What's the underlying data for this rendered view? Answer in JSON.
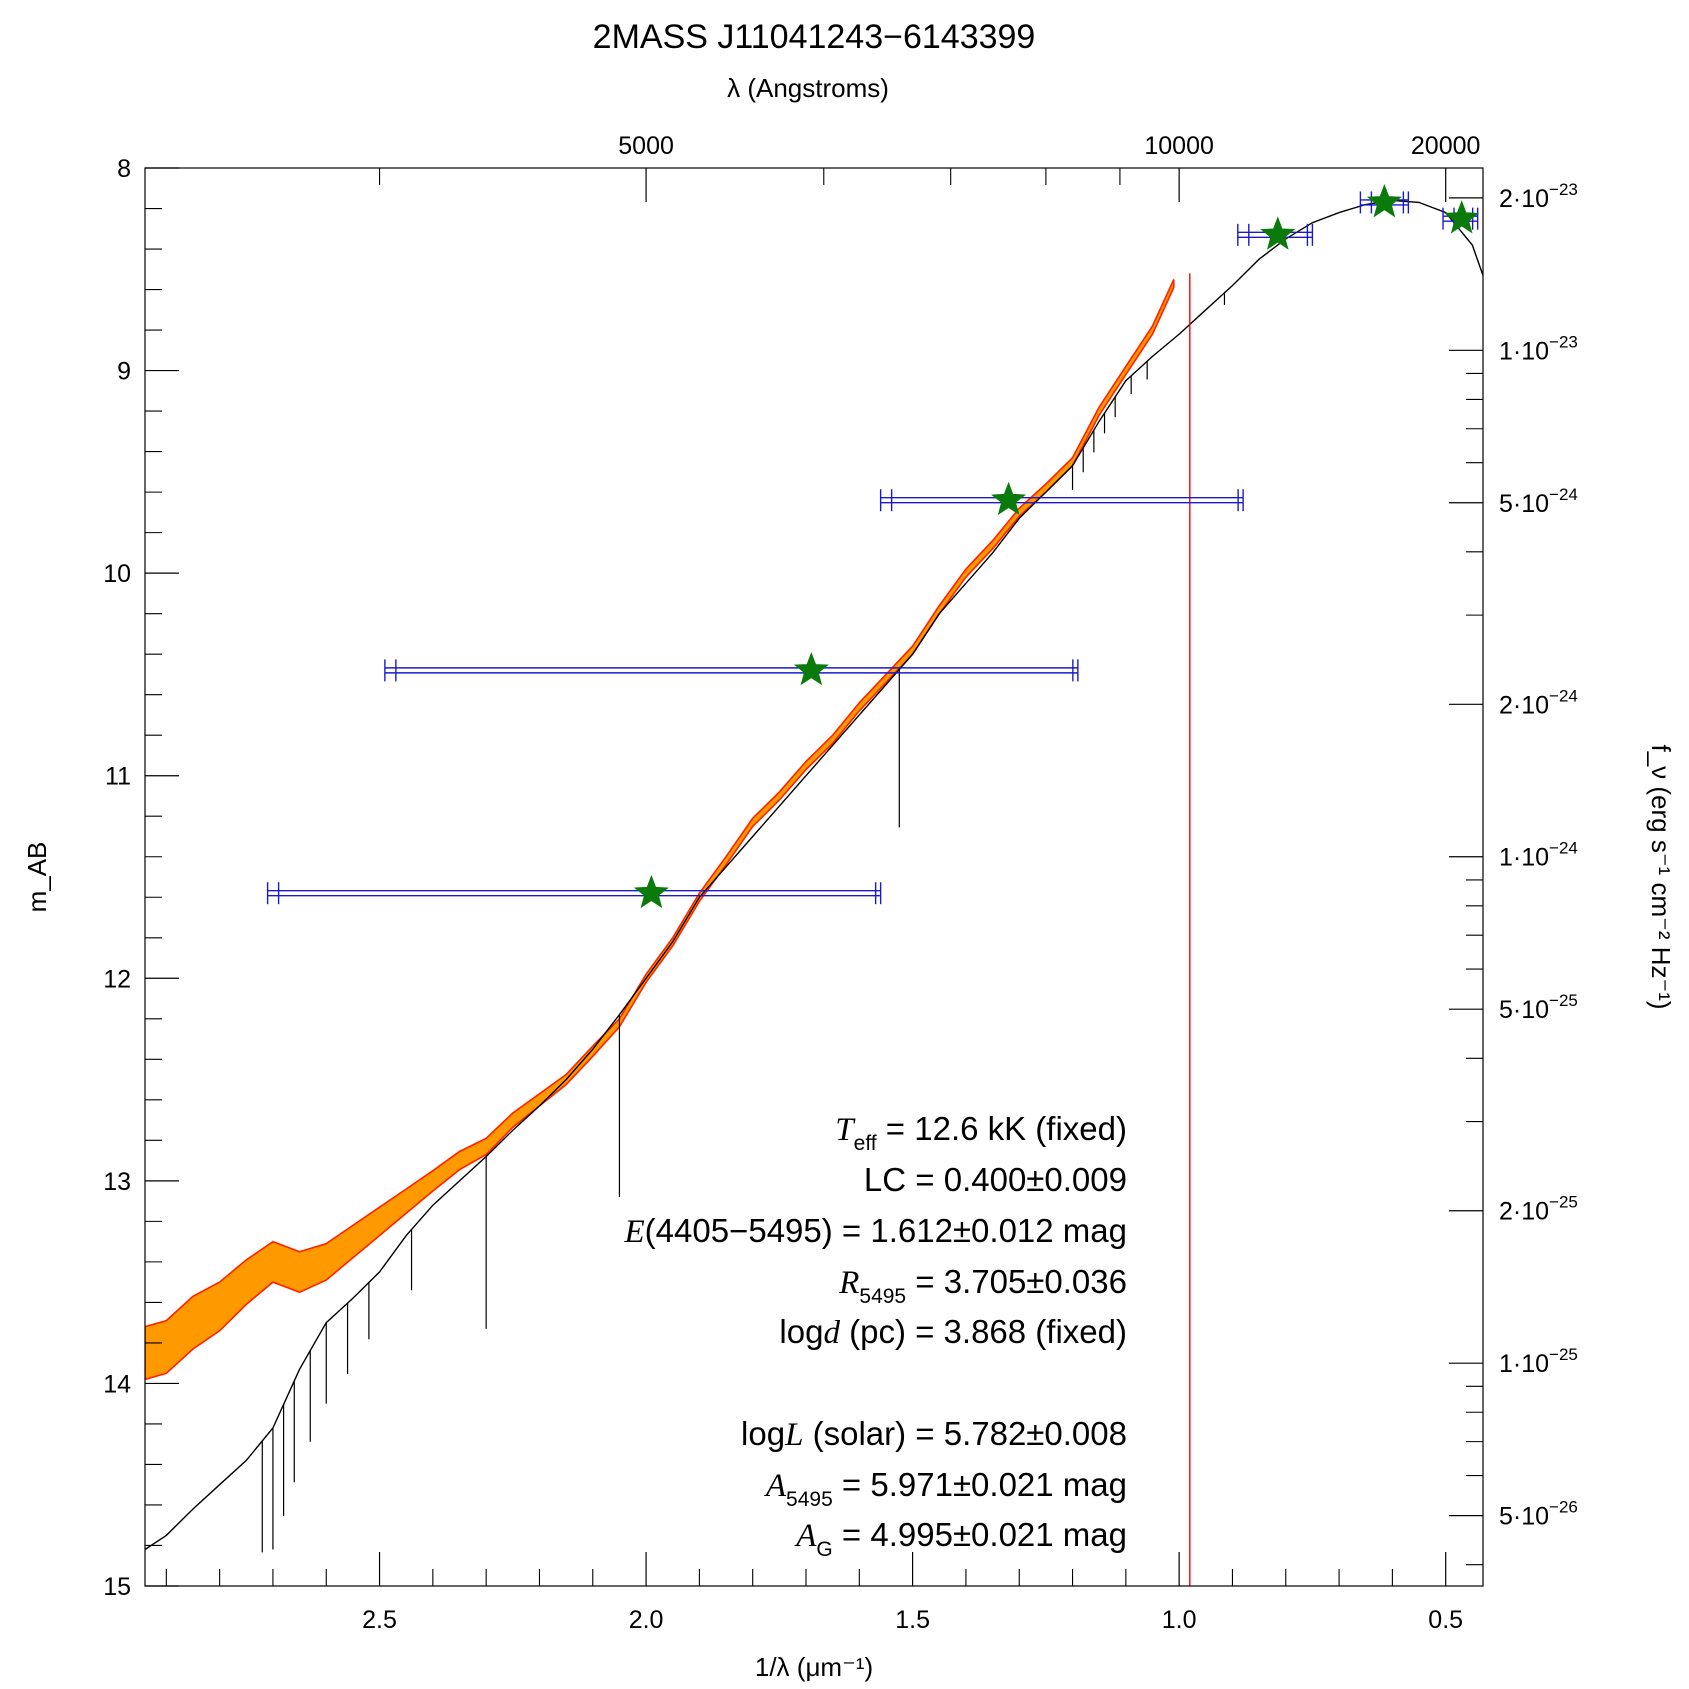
{
  "chart_data": {
    "type": "line",
    "title": "2MASS J11041243−6143399",
    "xlabel": "1/λ (μm⁻¹)",
    "ylabel_left": "m_AB",
    "ylabel_right": "f_ν (erg s⁻¹ cm⁻² Hz⁻¹)",
    "top_axis_label": "λ (Angstroms)",
    "xlim": [
      2.94,
      0.43
    ],
    "ylim": [
      15,
      8
    ],
    "x_ticks": [
      {
        "value": 2.5,
        "label": "2.5"
      },
      {
        "value": 2.0,
        "label": "2.0"
      },
      {
        "value": 1.5,
        "label": "1.5"
      },
      {
        "value": 1.0,
        "label": "1.0"
      },
      {
        "value": 0.5,
        "label": "0.5"
      }
    ],
    "y_ticks": [
      {
        "value": 8,
        "label": "8"
      },
      {
        "value": 9,
        "label": "9"
      },
      {
        "value": 10,
        "label": "10"
      },
      {
        "value": 11,
        "label": "11"
      },
      {
        "value": 12,
        "label": "12"
      },
      {
        "value": 13,
        "label": "13"
      },
      {
        "value": 14,
        "label": "14"
      },
      {
        "value": 15,
        "label": "15"
      }
    ],
    "top_ticks": [
      {
        "angstrom": 5000,
        "label": "5000"
      },
      {
        "angstrom": 10000,
        "label": "10000"
      },
      {
        "angstrom": 20000,
        "label": "20000"
      }
    ],
    "right_ticks": [
      {
        "flux": 2e-23,
        "label_base": "2·10",
        "label_exp": "−23"
      },
      {
        "flux": 1e-23,
        "label_base": "1·10",
        "label_exp": "−23"
      },
      {
        "flux": 5e-24,
        "label_base": "5·10",
        "label_exp": "−24"
      },
      {
        "flux": 2e-24,
        "label_base": "2·10",
        "label_exp": "−24"
      },
      {
        "flux": 1e-24,
        "label_base": "1·10",
        "label_exp": "−24"
      },
      {
        "flux": 5e-25,
        "label_base": "5·10",
        "label_exp": "−25"
      },
      {
        "flux": 2e-25,
        "label_base": "2·10",
        "label_exp": "−25"
      },
      {
        "flux": 1e-25,
        "label_base": "1·10",
        "label_exp": "−25"
      },
      {
        "flux": 5e-26,
        "label_base": "5·10",
        "label_exp": "−26"
      }
    ],
    "photometry": [
      {
        "x": 1.99,
        "y": 11.58,
        "xerr_lo": 2.71,
        "xerr_hi": 1.56
      },
      {
        "x": 1.69,
        "y": 10.48,
        "xerr_lo": 2.49,
        "xerr_hi": 1.19
      },
      {
        "x": 1.32,
        "y": 9.64,
        "xerr_lo": 1.56,
        "xerr_hi": 0.88
      },
      {
        "x": 0.815,
        "y": 8.33,
        "xerr_lo": 0.89,
        "xerr_hi": 0.75
      },
      {
        "x": 0.615,
        "y": 8.17,
        "xerr_lo": 0.66,
        "xerr_hi": 0.57
      },
      {
        "x": 0.47,
        "y": 8.25,
        "xerr_lo": 0.505,
        "xerr_hi": 0.44
      }
    ],
    "model_curve": {
      "x": [
        2.94,
        2.9,
        2.85,
        2.8,
        2.75,
        2.7,
        2.65,
        2.6,
        2.55,
        2.5,
        2.45,
        2.4,
        2.35,
        2.3,
        2.25,
        2.2,
        2.15,
        2.1,
        2.05,
        2.0,
        1.95,
        1.9,
        1.85,
        1.8,
        1.75,
        1.7,
        1.65,
        1.6,
        1.55,
        1.5,
        1.45,
        1.4,
        1.35,
        1.3,
        1.25,
        1.2,
        1.15,
        1.1,
        1.05,
        1.0,
        0.95,
        0.9,
        0.85,
        0.8,
        0.75,
        0.7,
        0.65,
        0.6,
        0.55,
        0.5,
        0.45,
        0.43
      ],
      "y": [
        14.82,
        14.75,
        14.62,
        14.5,
        14.38,
        14.22,
        13.93,
        13.7,
        13.58,
        13.45,
        13.27,
        13.12,
        13.0,
        12.88,
        12.75,
        12.63,
        12.5,
        12.35,
        12.18,
        12.0,
        11.82,
        11.6,
        11.45,
        11.3,
        11.15,
        11.0,
        10.85,
        10.7,
        10.55,
        10.4,
        10.2,
        10.05,
        9.9,
        9.73,
        9.6,
        9.47,
        9.25,
        9.05,
        8.93,
        8.82,
        8.7,
        8.58,
        8.45,
        8.35,
        8.27,
        8.22,
        8.18,
        8.16,
        8.17,
        8.22,
        8.38,
        8.53
      ]
    },
    "observed_spectrum": {
      "x": [
        2.94,
        2.9,
        2.85,
        2.8,
        2.75,
        2.7,
        2.65,
        2.6,
        2.55,
        2.5,
        2.45,
        2.4,
        2.35,
        2.3,
        2.25,
        2.2,
        2.15,
        2.1,
        2.05,
        2.0,
        1.95,
        1.9,
        1.85,
        1.8,
        1.75,
        1.7,
        1.65,
        1.6,
        1.55,
        1.5,
        1.45,
        1.4,
        1.35,
        1.3,
        1.25,
        1.2,
        1.15,
        1.1,
        1.05,
        1.01
      ],
      "y": [
        13.85,
        13.82,
        13.7,
        13.62,
        13.5,
        13.4,
        13.45,
        13.4,
        13.3,
        13.2,
        13.1,
        13.0,
        12.9,
        12.83,
        12.7,
        12.6,
        12.5,
        12.36,
        12.22,
        12.0,
        11.82,
        11.6,
        11.42,
        11.23,
        11.1,
        10.95,
        10.82,
        10.66,
        10.52,
        10.38,
        10.18,
        10.0,
        9.86,
        9.7,
        9.58,
        9.45,
        9.2,
        9.0,
        8.8,
        8.57
      ],
      "err": [
        0.13,
        0.13,
        0.13,
        0.12,
        0.11,
        0.1,
        0.1,
        0.09,
        0.08,
        0.07,
        0.06,
        0.05,
        0.045,
        0.04,
        0.035,
        0.03,
        0.025,
        0.025,
        0.02,
        0.02,
        0.02,
        0.02,
        0.02,
        0.02,
        0.02,
        0.02,
        0.02,
        0.02,
        0.02,
        0.02,
        0.02,
        0.02,
        0.02,
        0.02,
        0.02,
        0.02,
        0.02,
        0.02,
        0.02,
        0.02
      ]
    },
    "absorption_lines": [
      {
        "x": 2.72,
        "depth": 0.55
      },
      {
        "x": 2.7,
        "depth": 0.6
      },
      {
        "x": 2.68,
        "depth": 0.55
      },
      {
        "x": 2.66,
        "depth": 0.5
      },
      {
        "x": 2.63,
        "depth": 0.45
      },
      {
        "x": 2.6,
        "depth": 0.4
      },
      {
        "x": 2.56,
        "depth": 0.35
      },
      {
        "x": 2.52,
        "depth": 0.28
      },
      {
        "x": 2.44,
        "depth": 0.3
      },
      {
        "x": 2.3,
        "depth": 0.85
      },
      {
        "x": 2.05,
        "depth": 0.9
      },
      {
        "x": 1.525,
        "depth": 0.78
      },
      {
        "x": 1.2,
        "depth": 0.12
      },
      {
        "x": 1.18,
        "depth": 0.12
      },
      {
        "x": 1.16,
        "depth": 0.11
      },
      {
        "x": 1.14,
        "depth": 0.1
      },
      {
        "x": 1.12,
        "depth": 0.1
      },
      {
        "x": 1.09,
        "depth": 0.09
      },
      {
        "x": 1.06,
        "depth": 0.09
      },
      {
        "x": 0.915,
        "depth": 0.06
      }
    ],
    "vertical_line_x": 0.98,
    "annotations": [
      {
        "sym": "T",
        "sub": "eff",
        "text": " = 12.6 kK (fixed)"
      },
      {
        "sym": "",
        "sub": "",
        "text": "LC = 0.400±0.009"
      },
      {
        "sym": "E",
        "sub": "",
        "text": "(4405−5495) = 1.612±0.012 mag"
      },
      {
        "sym": "R",
        "sub": "5495",
        "text": " = 3.705±0.036"
      },
      {
        "sym": "log d",
        "sub": "",
        "text": " (pc) = 3.868 (fixed)"
      },
      {
        "sym": "log L",
        "sub": "",
        "text": " (solar) = 5.782±0.008"
      },
      {
        "sym": "A",
        "sub": "5495",
        "text": " = 5.971±0.021 mag"
      },
      {
        "sym": "A",
        "sub": "G",
        "text": " = 4.995±0.021 mag"
      }
    ],
    "colors": {
      "model": "#000000",
      "spectrum_fill": "#ff9900",
      "spectrum_edge": "#ff2200",
      "error_bars": "#1a1acc",
      "photometry": "#0a7a0a",
      "vertical_line": "#ff0000"
    }
  }
}
